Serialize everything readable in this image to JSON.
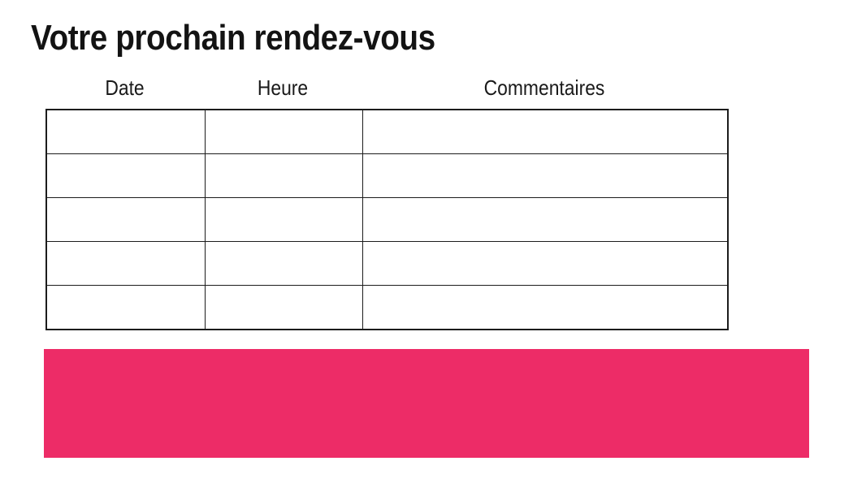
{
  "page": {
    "title": "Votre prochain rendez-vous"
  },
  "appointments_table": {
    "headers": [
      "Date",
      "Heure",
      "Commentaires"
    ],
    "rows": [
      [
        "",
        "",
        ""
      ],
      [
        "",
        "",
        ""
      ],
      [
        "",
        "",
        ""
      ],
      [
        "",
        "",
        ""
      ],
      [
        "",
        "",
        ""
      ]
    ]
  },
  "banner": {
    "color": "#ED2C67"
  }
}
